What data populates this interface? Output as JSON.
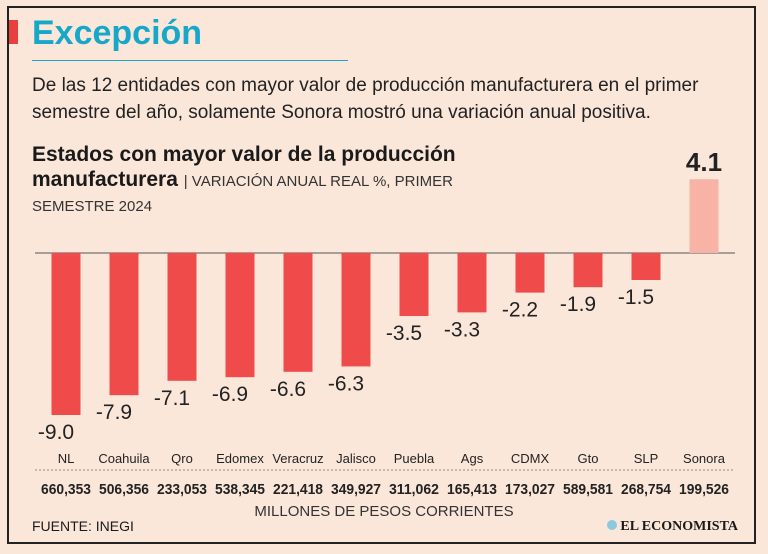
{
  "header": {
    "title": "Excepción",
    "intro": "De las 12 entidades con mayor valor de producción manufacturera en el primer semestre del año,  solamente Sonora mostró una variación anual positiva."
  },
  "chart_data": {
    "type": "bar",
    "title": "Estados con mayor valor de la producción manufacturera",
    "subtitle": "| VARIACIÓN ANUAL REAL %, PRIMER",
    "subtitle2": "SEMESTRE 2024",
    "categories": [
      "NL",
      "Coahuila",
      "Qro",
      "Edomex",
      "Veracruz",
      "Jalisco",
      "Puebla",
      "Ags",
      "CDMX",
      "Gto",
      "SLP",
      "Sonora"
    ],
    "values": [
      -9.0,
      -7.9,
      -7.1,
      -6.9,
      -6.6,
      -6.3,
      -3.5,
      -3.3,
      -2.2,
      -1.9,
      -1.5,
      4.1
    ],
    "production": [
      "660,353",
      "506,356",
      "233,053",
      "538,345",
      "221,418",
      "349,927",
      "311,062",
      "165,413",
      "173,027",
      "589,581",
      "268,754",
      "199,526"
    ],
    "production_unit": "MILLONES DE PESOS CORRIENTES",
    "colors": {
      "negative": "#ef4b4b",
      "positive": "#f6b3a6",
      "title": "#17a8c9"
    }
  },
  "footer": {
    "source": "FUENTE: INEGI",
    "logo": "EL ECONOMISTA"
  }
}
